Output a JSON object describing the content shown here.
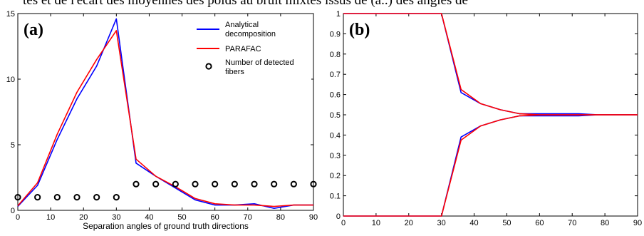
{
  "header_text": "tes et de l'écart des moyennes des poids au bruit mixtes issus de (a..) des angles de",
  "chart_data": [
    {
      "type": "line",
      "panel_label": "(a)",
      "xlabel": "Separation angles of ground truth directions",
      "ylabel": "",
      "xlim": [
        0,
        90
      ],
      "ylim": [
        0,
        15
      ],
      "xticks": [
        0,
        10,
        20,
        30,
        40,
        50,
        60,
        70,
        80,
        90
      ],
      "yticks": [
        0,
        5,
        10,
        15
      ],
      "x": [
        0,
        6,
        12,
        18,
        24,
        30,
        36,
        42,
        48,
        54,
        60,
        66,
        72,
        78,
        84,
        90
      ],
      "series": [
        {
          "name": "Analytical decomposition",
          "color": "#0000ff",
          "values": [
            0.3,
            1.9,
            5.4,
            8.5,
            11.0,
            14.6,
            3.6,
            2.6,
            1.7,
            0.8,
            0.4,
            0.4,
            0.5,
            0.15,
            0.4,
            0.4
          ]
        },
        {
          "name": "PARAFAC",
          "color": "#ff0000",
          "values": [
            0.35,
            2.1,
            5.8,
            9.0,
            11.5,
            13.7,
            3.9,
            2.6,
            1.8,
            0.9,
            0.5,
            0.4,
            0.4,
            0.3,
            0.4,
            0.4
          ]
        }
      ],
      "markers": {
        "name": "Number of detected fibers",
        "x": [
          0,
          6,
          12,
          18,
          24,
          30,
          36,
          42,
          48,
          54,
          60,
          66,
          72,
          78,
          84,
          90
        ],
        "values": [
          1,
          1,
          1,
          1,
          1,
          1,
          2,
          2,
          2,
          2,
          2,
          2,
          2,
          2,
          2,
          2
        ]
      },
      "legend": [
        "Analytical decomposition",
        "PARAFAC",
        "Number of detected fibers"
      ],
      "legend_position": "top-right"
    },
    {
      "type": "line",
      "panel_label": "(b)",
      "xlabel": "",
      "ylabel": "",
      "xlim": [
        0,
        90
      ],
      "ylim": [
        0,
        1
      ],
      "xticks": [
        0,
        10,
        20,
        30,
        40,
        50,
        60,
        70,
        80,
        90
      ],
      "yticks": [
        0,
        0.1,
        0.2,
        0.3,
        0.4,
        0.5,
        0.6,
        0.7,
        0.8,
        0.9,
        1
      ],
      "x": [
        0,
        6,
        12,
        18,
        24,
        30,
        36,
        42,
        48,
        54,
        60,
        66,
        72,
        78,
        84,
        90
      ],
      "series": [
        {
          "color": "#0000ff",
          "values": [
            1,
            1,
            1,
            1,
            1,
            1,
            0.61,
            0.555,
            0.525,
            0.505,
            0.505,
            0.505,
            0.505,
            0.5,
            0.5,
            0.5
          ]
        },
        {
          "color": "#0000ff",
          "values": [
            0,
            0,
            0,
            0,
            0,
            0,
            0.39,
            0.445,
            0.475,
            0.495,
            0.495,
            0.495,
            0.495,
            0.5,
            0.5,
            0.5
          ]
        },
        {
          "color": "#ff0000",
          "values": [
            1,
            1,
            1,
            1,
            1,
            1,
            0.625,
            0.555,
            0.525,
            0.505,
            0.5,
            0.5,
            0.5,
            0.5,
            0.5,
            0.5
          ]
        },
        {
          "color": "#ff0000",
          "values": [
            0,
            0,
            0,
            0,
            0,
            0,
            0.375,
            0.445,
            0.475,
            0.495,
            0.5,
            0.5,
            0.5,
            0.5,
            0.5,
            0.5
          ]
        }
      ]
    }
  ]
}
